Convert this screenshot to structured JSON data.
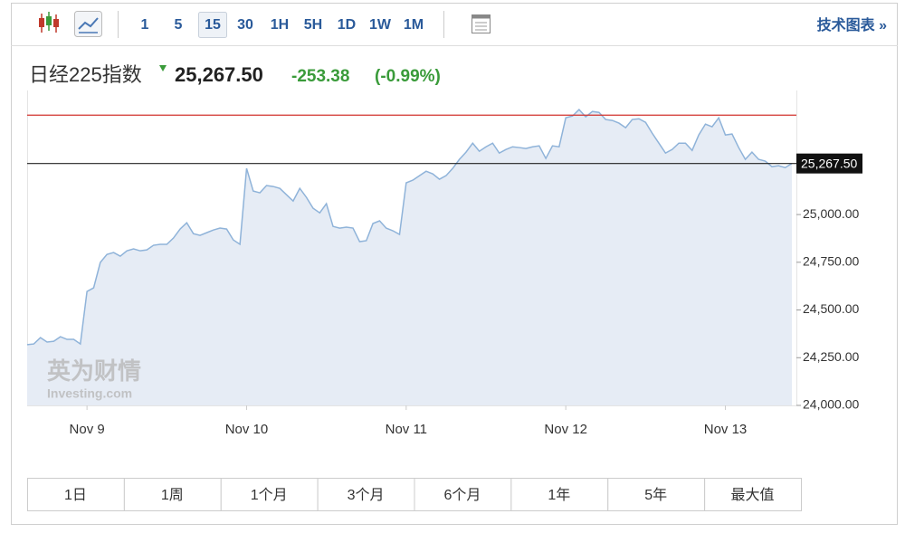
{
  "toolbar": {
    "intervals": [
      "1",
      "5",
      "15",
      "30",
      "1H",
      "5H",
      "1D",
      "1W",
      "1M"
    ],
    "selected": "15",
    "link": "技术图表 »"
  },
  "header": {
    "name": "日经225指数",
    "price": "25,267.50",
    "change": "-253.38",
    "change_percent": "(-0.99%)"
  },
  "chart_data": {
    "type": "area",
    "categories": [
      null,
      null,
      null,
      null,
      null,
      null,
      null,
      null,
      null,
      "Nov 9",
      null,
      null,
      null,
      null,
      null,
      null,
      null,
      null,
      null,
      null,
      null,
      null,
      null,
      null,
      null,
      null,
      null,
      null,
      null,
      null,
      null,
      null,
      null,
      "Nov 10",
      null,
      null,
      null,
      null,
      null,
      null,
      null,
      null,
      null,
      null,
      null,
      null,
      null,
      null,
      null,
      null,
      null,
      null,
      null,
      null,
      null,
      null,
      null,
      "Nov 11",
      null,
      null,
      null,
      null,
      null,
      null,
      null,
      null,
      null,
      null,
      null,
      null,
      null,
      null,
      null,
      null,
      null,
      null,
      null,
      null,
      null,
      null,
      null,
      "Nov 12",
      null,
      null,
      null,
      null,
      null,
      null,
      null,
      null,
      null,
      null,
      null,
      null,
      null,
      null,
      null,
      null,
      null,
      null,
      null,
      null,
      null,
      null,
      null,
      "Nov 13",
      null,
      null,
      null,
      null,
      null,
      null,
      null,
      null,
      null,
      null
    ],
    "values": [
      24318,
      24322,
      24355,
      24332,
      24336,
      24360,
      24346,
      24346,
      24322,
      24597,
      24616,
      24749,
      24791,
      24801,
      24782,
      24810,
      24820,
      24810,
      24815,
      24839,
      24844,
      24844,
      24877,
      24924,
      24957,
      24900,
      24891,
      24905,
      24919,
      24929,
      24924,
      24867,
      24844,
      25242,
      25123,
      25114,
      25152,
      25147,
      25137,
      25104,
      25071,
      25137,
      25090,
      25033,
      25009,
      25057,
      24938,
      24929,
      24934,
      24929,
      24858,
      24863,
      24953,
      24967,
      24929,
      24915,
      24896,
      25166,
      25180,
      25204,
      25227,
      25213,
      25185,
      25204,
      25242,
      25289,
      25327,
      25374,
      25332,
      25355,
      25374,
      25322,
      25341,
      25355,
      25351,
      25346,
      25355,
      25360,
      25294,
      25360,
      25355,
      25507,
      25516,
      25550,
      25512,
      25540,
      25535,
      25498,
      25493,
      25479,
      25455,
      25498,
      25502,
      25483,
      25426,
      25374,
      25322,
      25341,
      25374,
      25374,
      25336,
      25417,
      25474,
      25460,
      25507,
      25417,
      25422,
      25351,
      25289,
      25327,
      25289,
      25280,
      25251,
      25256,
      25246,
      25267.5
    ],
    "color": "#8fb3d9",
    "fill_color": "#e6ecf5",
    "ylim": [
      24000,
      25650
    ],
    "yticks": [
      {
        "value": 24000,
        "label": "24,000.00"
      },
      {
        "value": 24250,
        "label": "24,250.00"
      },
      {
        "value": 24500,
        "label": "24,500.00"
      },
      {
        "value": 24750,
        "label": "24,750.00"
      },
      {
        "value": 25000,
        "label": "25,000.00"
      }
    ],
    "last_value": {
      "value": 25267.5,
      "label": "25,267.50"
    },
    "prev_close": 25520.88,
    "prev_close_color": "#d2322d"
  },
  "watermark": {
    "cn": "英为财情",
    "en": "Investing.com"
  },
  "ranges": [
    "1日",
    "1周",
    "1个月",
    "3个月",
    "6个月",
    "1年",
    "5年",
    "最大值"
  ]
}
